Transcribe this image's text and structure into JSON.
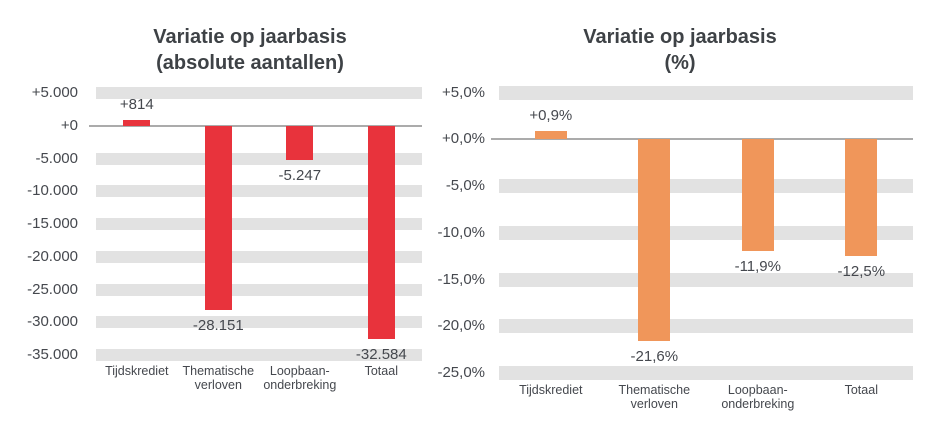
{
  "figure": {
    "description": "two vertical bar charts, year-on-year variation",
    "background": "#FFFFFF"
  },
  "colors": {
    "band": "#E2E2E2",
    "axis_line": "#ABABAB",
    "text": "#45484E",
    "title": "#3E4246",
    "bar_red": "#E8333C",
    "bar_orange": "#F0965A"
  },
  "chart_data": [
    {
      "type": "bar",
      "title": "Variatie op jaarbasis",
      "subtitle": "(absolute aantallen)",
      "categories": [
        "Tijdskrediet",
        "Thematische\nverloven",
        "Loopbaan-\nonderbreking",
        "Totaal"
      ],
      "values": [
        814,
        -28151,
        -5247,
        -32584
      ],
      "data_labels": [
        "+814",
        "-28.151",
        "-5.247",
        "-32.584"
      ],
      "bar_color": "#E8333C",
      "ylim": [
        -35000,
        5000
      ],
      "y_ticks": [
        {
          "value": 5000,
          "label": "+5.000"
        },
        {
          "value": 0,
          "label": "+0"
        },
        {
          "value": -5000,
          "label": "-5.000"
        },
        {
          "value": -10000,
          "label": "-10.000"
        },
        {
          "value": -15000,
          "label": "-15.000"
        },
        {
          "value": -20000,
          "label": "-20.000"
        },
        {
          "value": -25000,
          "label": "-25.000"
        },
        {
          "value": -30000,
          "label": "-30.000"
        },
        {
          "value": -35000,
          "label": "-35.000"
        }
      ],
      "grid": "horizontal-gray-bands",
      "legend": "none"
    },
    {
      "type": "bar",
      "title": "Variatie op jaarbasis",
      "subtitle": "(%)",
      "categories": [
        "Tijdskrediet",
        "Thematische\nverloven",
        "Loopbaan-\nonderbreking",
        "Totaal"
      ],
      "values": [
        0.9,
        -21.6,
        -11.9,
        -12.5
      ],
      "data_labels": [
        "+0,9%",
        "-21,6%",
        "-11,9%",
        "-12,5%"
      ],
      "bar_color": "#F0965A",
      "ylim": [
        -25,
        5
      ],
      "y_ticks": [
        {
          "value": 5,
          "label": "+5,0%"
        },
        {
          "value": 0,
          "label": "+0,0%"
        },
        {
          "value": -5,
          "label": "-5,0%"
        },
        {
          "value": -10,
          "label": "-10,0%"
        },
        {
          "value": -15,
          "label": "-15,0%"
        },
        {
          "value": -20,
          "label": "-20,0%"
        },
        {
          "value": -25,
          "label": "-25,0%"
        }
      ],
      "grid": "horizontal-gray-bands",
      "legend": "none"
    }
  ]
}
